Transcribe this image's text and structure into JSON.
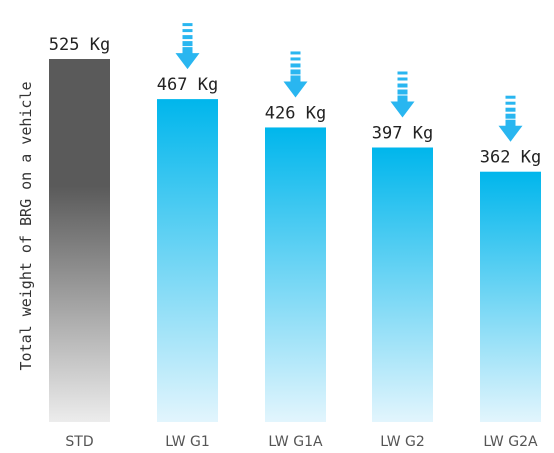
{
  "chart_data": {
    "type": "bar",
    "categories": [
      "STD",
      "LW G1",
      "LW G1A",
      "LW G2",
      "LW G2A"
    ],
    "values": [
      525,
      467,
      426,
      397,
      362
    ],
    "data_labels": [
      "525 Kg",
      "467 Kg",
      "426 Kg",
      "397 Kg",
      "362 Kg"
    ],
    "unit": "Kg",
    "xlabel": "",
    "ylabel": "Total weight of BRG on a vehicle",
    "ylim": [
      0,
      525
    ],
    "grid": false,
    "legend": "none",
    "colors": {
      "std_top": "#5a5a5a",
      "std_bottom": "#ececec",
      "lw_top": "#00b6ec",
      "lw_bottom": "#e2f5fd",
      "arrow": "#29b6f0"
    },
    "decreasing_arrows": [
      "LW G1",
      "LW G1A",
      "LW G2",
      "LW G2A"
    ]
  }
}
